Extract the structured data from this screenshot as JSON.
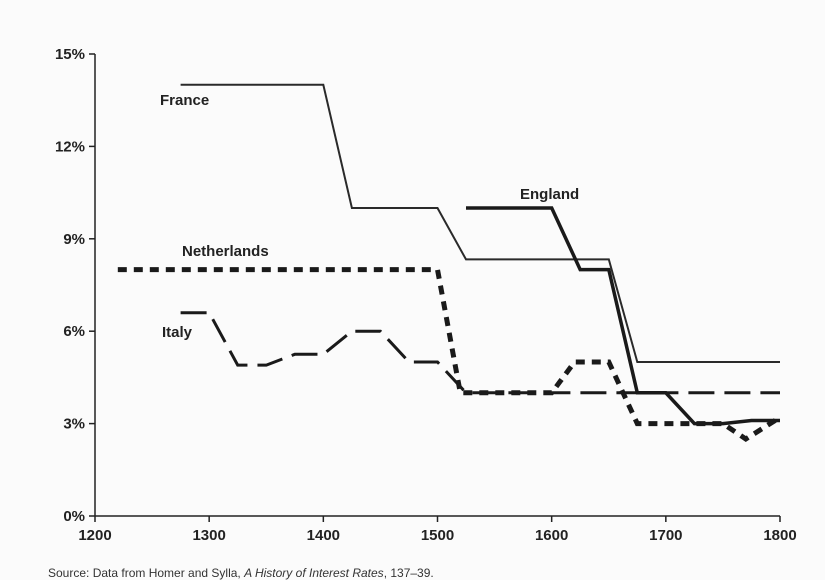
{
  "chart_data": {
    "type": "line",
    "title": "",
    "xlabel": "",
    "ylabel": "",
    "xlim": [
      1200,
      1800
    ],
    "ylim": [
      0,
      15
    ],
    "x_ticks": [
      1200,
      1300,
      1400,
      1500,
      1600,
      1700,
      1800
    ],
    "x_tick_labels": [
      "1200",
      "1300",
      "1400",
      "1500",
      "1600",
      "1700",
      "1800"
    ],
    "y_ticks": [
      0,
      3,
      6,
      9,
      12,
      15
    ],
    "y_tick_labels": [
      "0%",
      "3%",
      "6%",
      "9%",
      "12%",
      "15%"
    ],
    "grid": false,
    "legend": "none",
    "series": [
      {
        "name": "France",
        "style": "solid",
        "x": [
          1275,
          1400,
          1425,
          1500,
          1525,
          1650,
          1675,
          1800
        ],
        "y": [
          14,
          14,
          10,
          10,
          8.33,
          8.33,
          5,
          5
        ]
      },
      {
        "name": "England",
        "style": "solid-thick",
        "x": [
          1525,
          1600,
          1625,
          1650,
          1675,
          1700,
          1725,
          1750,
          1775,
          1800
        ],
        "y": [
          10,
          10,
          8,
          8,
          4,
          4,
          3,
          3,
          3.1,
          3.1
        ]
      },
      {
        "name": "Netherlands",
        "style": "dotted",
        "x": [
          1220,
          1500,
          1520,
          1600,
          1620,
          1650,
          1675,
          1750,
          1770,
          1800
        ],
        "y": [
          8,
          8,
          4,
          4,
          5,
          5,
          3,
          3,
          2.5,
          3.2
        ]
      },
      {
        "name": "Italy",
        "style": "dashed",
        "x": [
          1275,
          1300,
          1325,
          1350,
          1375,
          1400,
          1425,
          1450,
          1475,
          1500,
          1525,
          1800
        ],
        "y": [
          6.6,
          6.6,
          4.9,
          4.9,
          5.25,
          5.25,
          6,
          6,
          5,
          5,
          4,
          4
        ]
      }
    ]
  },
  "source": {
    "prefix": "Source: Data from Homer and Sylla, ",
    "book": "A History of Interest Rates",
    "suffix": ", 137–39."
  }
}
